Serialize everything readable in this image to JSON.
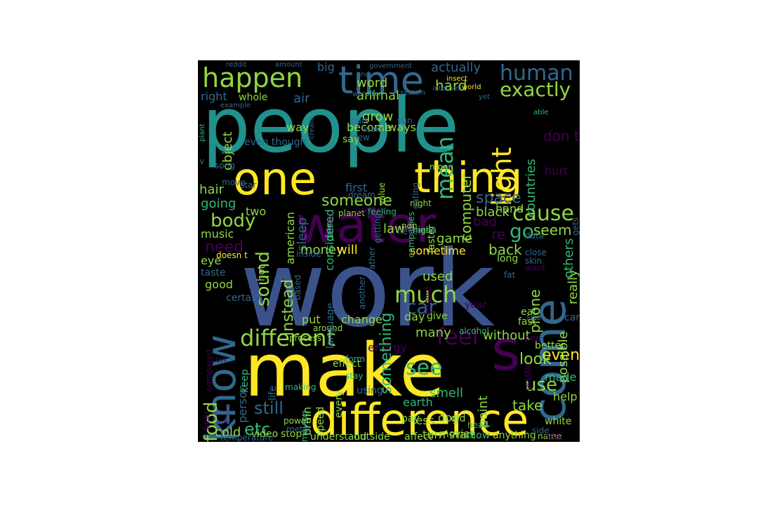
{
  "background_color": "#000000",
  "page_color": "#ffffff",
  "palette": {
    "p": "#440154",
    "d": "#3b528b",
    "b": "#31688e",
    "t": "#21918c",
    "g": "#35b779",
    "l": "#90d743",
    "y": "#fde725"
  },
  "words": [
    "people",
    "work",
    "make",
    "water",
    "one",
    "thing",
    "time",
    "happen",
    "difference",
    "come",
    "know",
    "s",
    "u",
    "human",
    "exactly",
    "actually",
    "hard",
    "mean",
    "light",
    "cause",
    "feel",
    "much",
    "car",
    "different",
    "even",
    "use",
    "food",
    "etc",
    "still",
    "sound",
    "someone",
    "space",
    "body",
    "need",
    "instead",
    "sleep",
    "money",
    "will",
    "sometime",
    "back",
    "go",
    "seem",
    "phone",
    "possible",
    "really",
    "computer",
    "countries",
    "don t",
    "hurt",
    "others",
    "black",
    "hand",
    "re",
    "bad",
    "game",
    "law",
    "considered",
    "american",
    "first",
    "two",
    "going",
    "hair",
    "music",
    "eye",
    "taste",
    "good",
    "certain",
    "person",
    "keep",
    "life",
    "brain",
    "speed",
    "every",
    "energy",
    "earth",
    "turn",
    "start",
    "help",
    "made",
    "look",
    "better",
    "white",
    "take",
    "smell",
    "point",
    "see",
    "day",
    "put",
    "change",
    "something",
    "used",
    "many",
    "without",
    "fast",
    "eat",
    "give",
    "alcohol",
    "around",
    "process",
    "language",
    "compared",
    "based",
    "hot",
    "doesn t",
    "inside",
    "cold",
    "video",
    "stop",
    "less",
    "dog",
    "pay",
    "old",
    "movie",
    "show",
    "anything",
    "name",
    "side",
    "real",
    "head",
    "affect",
    "outside",
    "understand",
    "power",
    "metal",
    "moving",
    "making",
    "effect",
    "using",
    "form",
    "stay",
    "bear",
    "run",
    "temperature",
    "air",
    "grow",
    "animal",
    "word",
    "big",
    "reddit",
    "amount",
    "end",
    "government",
    "women",
    "often",
    "system",
    "internet",
    "world",
    "insect",
    "yet",
    "create",
    "example",
    "whole",
    "right",
    "able",
    "plant",
    "even though",
    "object",
    "way",
    "always",
    "become",
    "say",
    "new",
    "part",
    "wake",
    "sun",
    "moon",
    "song",
    "move",
    "star",
    "pain",
    "planet",
    "vaccine",
    "feeling",
    "night",
    "eating",
    "dream",
    "value",
    "gets",
    "getting",
    "companies",
    "non",
    "never",
    "data",
    "close",
    "rather",
    "skin",
    "want",
    "long",
    "high",
    "faster",
    "another",
    "engine",
    "mean",
    "year",
    "car",
    "fat",
    "see",
    "v",
    "plastic",
    "pee"
  ]
}
